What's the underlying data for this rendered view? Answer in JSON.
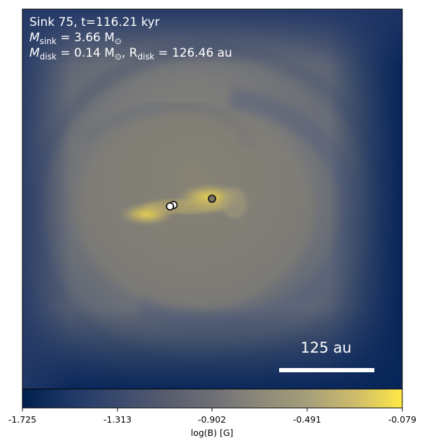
{
  "panel": {
    "line1": "Sink 75, t=116.21 kyr",
    "sink_mass_label": "M",
    "sink_mass_sub": "sink",
    "sink_mass_value": " = 3.66 M",
    "disk_mass_label": "M",
    "disk_mass_sub": "disk",
    "disk_mass_value": " = 0.14 M",
    "disk_radius_label": ", R",
    "disk_radius_sub": "disk",
    "disk_radius_value": " = 126.46 au",
    "solar_symbol": "⊙"
  },
  "scalebar": {
    "label": "125 au"
  },
  "colorbar": {
    "label": "log(B) [G]",
    "ticks": [
      "-1.725",
      "-1.313",
      "-0.902",
      "-0.491",
      "-0.079"
    ],
    "colors": [
      "#00204c",
      "#3a4a6e",
      "#6e6f75",
      "#a59e7a",
      "#ffe945"
    ]
  },
  "sinks": [
    {
      "name": "sink-1",
      "fill": "#ffffff"
    },
    {
      "name": "sink-2",
      "fill": "#ffffff"
    },
    {
      "name": "sink-3",
      "fill": "#7d7860"
    }
  ]
}
